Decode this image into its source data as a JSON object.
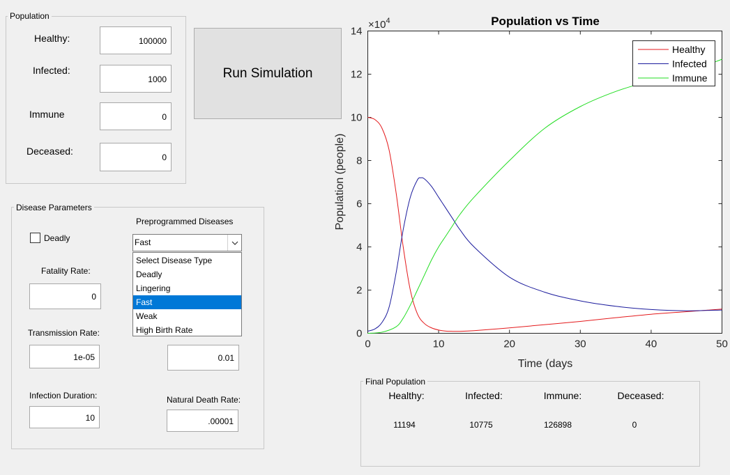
{
  "population": {
    "title": "Population",
    "healthy_label": "Healthy:",
    "healthy_value": "100000",
    "infected_label": "Infected:",
    "infected_value": "1000",
    "immune_label": "Immune",
    "immune_value": "0",
    "deceased_label": "Deceased:",
    "deceased_value": "0"
  },
  "run_button": "Run Simulation",
  "disease": {
    "title": "Disease Parameters",
    "deadly_label": "Deadly",
    "deadly_checked": false,
    "preprogrammed_label": "Preprogrammed Diseases",
    "selected": "Fast",
    "options": [
      "Select Disease Type",
      "Deadly",
      "Lingering",
      "Fast",
      "Weak",
      "High Birth Rate"
    ],
    "selected_index": 3,
    "fatality_label": "Fatality Rate:",
    "fatality_value": "0",
    "transmission_label": "Transmission Rate:",
    "transmission_value": "1e-05",
    "hidden_param_value": "0.01",
    "duration_label": "Infection Duration:",
    "duration_value": "10",
    "natural_death_label": "Natural Death Rate:",
    "natural_death_value": ".00001"
  },
  "chart_data": {
    "type": "line",
    "title": "Population vs Time",
    "xlabel": "Time (days",
    "ylabel": "Population (people)",
    "y_exponent_label": "×10",
    "y_exponent_power": "4",
    "xlim": [
      0,
      50
    ],
    "ylim": [
      0,
      140000
    ],
    "xticks": [
      "0",
      "10",
      "20",
      "30",
      "40",
      "50"
    ],
    "yticks": [
      "0",
      "2",
      "4",
      "6",
      "8",
      "10",
      "12",
      "14"
    ],
    "legend_position": "top-right",
    "grid": false,
    "series": [
      {
        "name": "Healthy",
        "color": "#e41a1c",
        "x": [
          0,
          1,
          2,
          3,
          4,
          5,
          6,
          7,
          8,
          9,
          10,
          11,
          12,
          13,
          15,
          20,
          25,
          30,
          35,
          40,
          45,
          50
        ],
        "y": [
          100000,
          99000,
          95000,
          85000,
          65000,
          40000,
          20000,
          9000,
          4500,
          2500,
          1500,
          1000,
          900,
          900,
          1200,
          2500,
          4000,
          5500,
          7200,
          8800,
          10000,
          11194
        ]
      },
      {
        "name": "Infected",
        "color": "#1a1a9c",
        "x": [
          0,
          1,
          2,
          3,
          4,
          5,
          6,
          7,
          7.5,
          8,
          9,
          10,
          11,
          12,
          13,
          15,
          20,
          25,
          30,
          35,
          40,
          45,
          50
        ],
        "y": [
          1000,
          2000,
          5000,
          12000,
          28000,
          48000,
          63000,
          71000,
          72000,
          71500,
          68000,
          63000,
          58000,
          53000,
          48000,
          40000,
          26000,
          19000,
          15000,
          12500,
          11000,
          10400,
          10775
        ]
      },
      {
        "name": "Immune",
        "color": "#22dd22",
        "x": [
          0,
          2,
          4,
          5,
          6,
          7,
          8,
          9,
          10,
          11,
          12,
          13,
          15,
          20,
          25,
          30,
          35,
          40,
          45,
          50
        ],
        "y": [
          0,
          500,
          3000,
          7000,
          13000,
          20000,
          27000,
          34000,
          40000,
          45000,
          50000,
          55000,
          63000,
          80000,
          95000,
          105000,
          112000,
          117000,
          121000,
          126898
        ]
      }
    ]
  },
  "final": {
    "title": "Final Population",
    "headers": [
      "Healthy:",
      "Infected:",
      "Immune:",
      "Deceased:"
    ],
    "values": [
      "11194",
      "10775",
      "126898",
      "0"
    ]
  }
}
